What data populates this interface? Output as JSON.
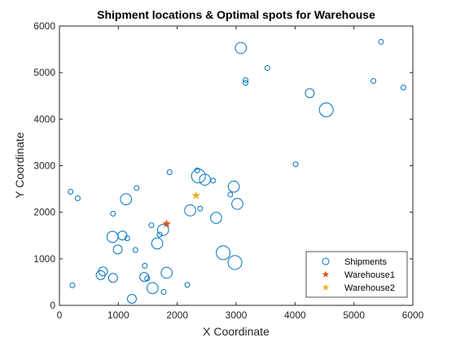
{
  "chart_data": {
    "type": "scatter",
    "title": "Shipment locations & Optimal spots for Warehouse",
    "xlabel": "X Coordinate",
    "ylabel": "Y Coordinate",
    "xlim": [
      0,
      6000
    ],
    "ylim": [
      0,
      6000
    ],
    "xticks": [
      0,
      1000,
      2000,
      3000,
      4000,
      5000,
      6000
    ],
    "yticks": [
      0,
      1000,
      2000,
      3000,
      4000,
      5000,
      6000
    ],
    "xtick_labels": [
      "0",
      "1000",
      "2000",
      "3000",
      "4000",
      "5000",
      "6000"
    ],
    "ytick_labels": [
      "0",
      "1000",
      "2000",
      "3000",
      "4000",
      "5000",
      "6000"
    ],
    "grid": false,
    "legend_position": "bottom-right",
    "colors": {
      "shipments": "#0072BD",
      "warehouse1": "#D95319",
      "warehouse2": "#EDB120"
    },
    "series": [
      {
        "name": "Shipments",
        "marker": "circle",
        "points": [
          {
            "x": 3080,
            "y": 5530,
            "s": 3
          },
          {
            "x": 5460,
            "y": 5660,
            "s": 1
          },
          {
            "x": 3530,
            "y": 5100,
            "s": 1
          },
          {
            "x": 3160,
            "y": 4840,
            "s": 1
          },
          {
            "x": 3160,
            "y": 4780,
            "s": 1
          },
          {
            "x": 5330,
            "y": 4820,
            "s": 1
          },
          {
            "x": 5840,
            "y": 4680,
            "s": 1
          },
          {
            "x": 4250,
            "y": 4560,
            "s": 2
          },
          {
            "x": 4530,
            "y": 4200,
            "s": 4
          },
          {
            "x": 4010,
            "y": 3030,
            "s": 1
          },
          {
            "x": 1870,
            "y": 2860,
            "s": 1
          },
          {
            "x": 2340,
            "y": 2900,
            "s": 1
          },
          {
            "x": 2360,
            "y": 2780,
            "s": 4
          },
          {
            "x": 2470,
            "y": 2700,
            "s": 3
          },
          {
            "x": 2610,
            "y": 2680,
            "s": 1
          },
          {
            "x": 2960,
            "y": 2550,
            "s": 3
          },
          {
            "x": 2900,
            "y": 2380,
            "s": 1
          },
          {
            "x": 3020,
            "y": 2180,
            "s": 3
          },
          {
            "x": 190,
            "y": 2440,
            "s": 1
          },
          {
            "x": 310,
            "y": 2300,
            "s": 1
          },
          {
            "x": 1310,
            "y": 2520,
            "s": 1
          },
          {
            "x": 1130,
            "y": 2280,
            "s": 3
          },
          {
            "x": 910,
            "y": 1970,
            "s": 1
          },
          {
            "x": 2220,
            "y": 2040,
            "s": 3
          },
          {
            "x": 2390,
            "y": 2080,
            "s": 1
          },
          {
            "x": 2660,
            "y": 1880,
            "s": 3
          },
          {
            "x": 1560,
            "y": 1720,
            "s": 1
          },
          {
            "x": 1760,
            "y": 1620,
            "s": 3
          },
          {
            "x": 1700,
            "y": 1520,
            "s": 1
          },
          {
            "x": 1660,
            "y": 1330,
            "s": 3
          },
          {
            "x": 900,
            "y": 1470,
            "s": 3
          },
          {
            "x": 1070,
            "y": 1500,
            "s": 2
          },
          {
            "x": 1150,
            "y": 1440,
            "s": 1
          },
          {
            "x": 990,
            "y": 1200,
            "s": 2
          },
          {
            "x": 1290,
            "y": 1190,
            "s": 1
          },
          {
            "x": 2780,
            "y": 1130,
            "s": 4
          },
          {
            "x": 2980,
            "y": 920,
            "s": 4
          },
          {
            "x": 740,
            "y": 730,
            "s": 2
          },
          {
            "x": 700,
            "y": 650,
            "s": 2
          },
          {
            "x": 910,
            "y": 590,
            "s": 2
          },
          {
            "x": 1450,
            "y": 850,
            "s": 1
          },
          {
            "x": 1440,
            "y": 610,
            "s": 2
          },
          {
            "x": 1490,
            "y": 580,
            "s": 1
          },
          {
            "x": 1820,
            "y": 700,
            "s": 3
          },
          {
            "x": 220,
            "y": 430,
            "s": 1
          },
          {
            "x": 1580,
            "y": 370,
            "s": 3
          },
          {
            "x": 1770,
            "y": 290,
            "s": 1
          },
          {
            "x": 2170,
            "y": 440,
            "s": 1
          },
          {
            "x": 1230,
            "y": 140,
            "s": 2
          }
        ]
      },
      {
        "name": "Warehouse1",
        "marker": "star",
        "points": [
          {
            "x": 1820,
            "y": 1750
          }
        ]
      },
      {
        "name": "Warehouse2",
        "marker": "star",
        "points": [
          {
            "x": 2320,
            "y": 2360
          }
        ]
      }
    ],
    "legend": [
      "Shipments",
      "Warehouse1",
      "Warehouse2"
    ]
  }
}
